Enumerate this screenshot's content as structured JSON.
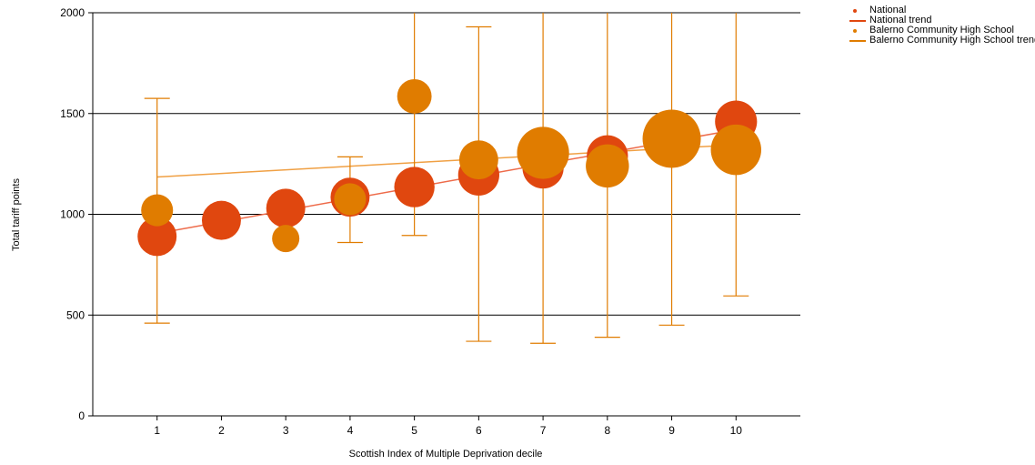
{
  "chart_data": {
    "type": "scatter",
    "xlabel": "Scottish Index of Multiple Deprivation decile",
    "ylabel": "Total tariff points",
    "xlim": [
      0,
      11
    ],
    "ylim": [
      0,
      2000
    ],
    "x_ticks": [
      "1",
      "2",
      "3",
      "4",
      "5",
      "6",
      "7",
      "8",
      "9",
      "10"
    ],
    "y_ticks": [
      "0",
      "500",
      "1000",
      "1500",
      "2000"
    ],
    "grid": "horizontal",
    "legend_position": "top-right",
    "series": [
      {
        "name": "National",
        "color": "#e0470f",
        "points": [
          {
            "x": 1,
            "y": 890,
            "size": 0.45
          },
          {
            "x": 2,
            "y": 970,
            "size": 0.45
          },
          {
            "x": 3,
            "y": 1030,
            "size": 0.45
          },
          {
            "x": 4,
            "y": 1085,
            "size": 0.45
          },
          {
            "x": 5,
            "y": 1135,
            "size": 0.48
          },
          {
            "x": 6,
            "y": 1195,
            "size": 0.5
          },
          {
            "x": 7,
            "y": 1230,
            "size": 0.5
          },
          {
            "x": 8,
            "y": 1290,
            "size": 0.5
          },
          {
            "x": 9,
            "y": 1360,
            "size": 0.5
          },
          {
            "x": 10,
            "y": 1460,
            "size": 0.52
          }
        ]
      },
      {
        "name": "National trend",
        "color": "#ee6b4a",
        "x": [
          1,
          10
        ],
        "y": [
          905,
          1420
        ]
      },
      {
        "name": "Balerno Community High School",
        "color": "#e07c00",
        "points": [
          {
            "x": 1,
            "y": 1020,
            "size": 0.3,
            "err_low": 460,
            "err_high": 1575
          },
          {
            "x": 3,
            "y": 880,
            "size": 0.22,
            "err_low": 880,
            "err_high": 880
          },
          {
            "x": 4,
            "y": 1075,
            "size": 0.3,
            "err_low": 860,
            "err_high": 1285
          },
          {
            "x": 5,
            "y": 1585,
            "size": 0.35,
            "err_low": 895,
            "err_high": 2000
          },
          {
            "x": 6,
            "y": 1270,
            "size": 0.45,
            "err_low": 370,
            "err_high": 1930
          },
          {
            "x": 7,
            "y": 1305,
            "size": 0.8,
            "err_low": 360,
            "err_high": 2000
          },
          {
            "x": 8,
            "y": 1240,
            "size": 0.55,
            "err_low": 390,
            "err_high": 2000
          },
          {
            "x": 9,
            "y": 1375,
            "size": 1.0,
            "err_low": 450,
            "err_high": 2000
          },
          {
            "x": 10,
            "y": 1320,
            "size": 0.75,
            "err_low": 595,
            "err_high": 2000
          }
        ]
      },
      {
        "name": "Balerno Community High School trend",
        "color": "#f0a044",
        "x": [
          1,
          10
        ],
        "y": [
          1185,
          1345
        ]
      }
    ]
  },
  "legend": {
    "items": [
      {
        "label": "National",
        "kind": "dot",
        "color": "#e0470f"
      },
      {
        "label": "National trend",
        "kind": "line",
        "color": "#e0470f"
      },
      {
        "label": "Balerno Community High School",
        "kind": "dot",
        "color": "#e07c00"
      },
      {
        "label": "Balerno Community High School trend",
        "kind": "line",
        "color": "#e07c00"
      }
    ]
  }
}
